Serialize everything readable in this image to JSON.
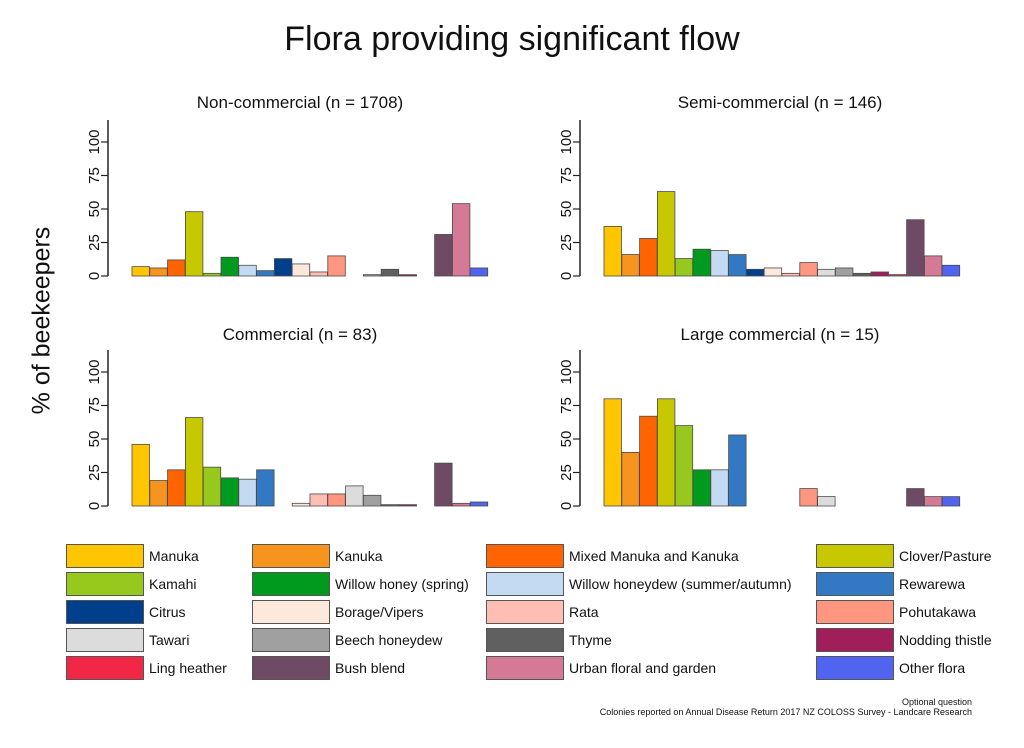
{
  "title": "Flora providing significant flow",
  "ylabel": "% of beekeepers",
  "footnotes": {
    "optional": "Optional question",
    "source": "Colonies reported on Annual Disease Return 2017 NZ COLOSS Survey - Landcare Research"
  },
  "legend": [
    {
      "label": "Manuka",
      "color": "#FFC600"
    },
    {
      "label": "Kanuka",
      "color": "#F7941D"
    },
    {
      "label": "Mixed Manuka and Kanuka",
      "color": "#FF6400"
    },
    {
      "label": "Clover/Pasture",
      "color": "#C8C800"
    },
    {
      "label": "Kamahi",
      "color": "#96C81E"
    },
    {
      "label": "Willow honey (spring)",
      "color": "#009B1E"
    },
    {
      "label": "Willow honeydew (summer/autumn)",
      "color": "#C3DAF2"
    },
    {
      "label": "Rewarewa",
      "color": "#3278C3"
    },
    {
      "label": "Citrus",
      "color": "#003F8C"
    },
    {
      "label": "Borage/Vipers",
      "color": "#FDE9DC"
    },
    {
      "label": "Rata",
      "color": "#FFBEB4"
    },
    {
      "label": "Pohutakawa",
      "color": "#FF9680"
    },
    {
      "label": "Tawari",
      "color": "#DCDCDC"
    },
    {
      "label": "Beech honeydew",
      "color": "#A0A0A0"
    },
    {
      "label": "Thyme",
      "color": "#606060"
    },
    {
      "label": "Nodding thistle",
      "color": "#A01E5A"
    },
    {
      "label": "Ling heather",
      "color": "#F02846"
    },
    {
      "label": "Bush blend",
      "color": "#6E4A64"
    },
    {
      "label": "Urban floral and garden",
      "color": "#D47A96"
    },
    {
      "label": "Other flora",
      "color": "#5064F0"
    }
  ],
  "chart_data": [
    {
      "type": "bar",
      "title": "Non-commercial (n = 1708)",
      "ylim": [
        0,
        100
      ],
      "yticks": [
        "0",
        "25",
        "50",
        "75",
        "100"
      ],
      "categories": [
        "Manuka",
        "Kanuka",
        "Mixed Manuka and Kanuka",
        "Clover/Pasture",
        "Kamahi",
        "Willow honey (spring)",
        "Willow honeydew (summer/autumn)",
        "Rewarewa",
        "Citrus",
        "Borage/Vipers",
        "Rata",
        "Pohutakawa",
        "Tawari",
        "Beech honeydew",
        "Thyme",
        "Nodding thistle",
        "Ling heather",
        "Bush blend",
        "Urban floral and garden",
        "Other flora"
      ],
      "values": [
        7,
        6,
        12,
        48,
        2,
        14,
        8,
        4,
        13,
        9,
        3,
        15,
        0,
        1,
        5,
        1,
        0,
        31,
        54,
        6
      ]
    },
    {
      "type": "bar",
      "title": "Semi-commercial (n = 146)",
      "ylim": [
        0,
        100
      ],
      "yticks": [
        "0",
        "25",
        "50",
        "75",
        "100"
      ],
      "categories": [
        "Manuka",
        "Kanuka",
        "Mixed Manuka and Kanuka",
        "Clover/Pasture",
        "Kamahi",
        "Willow honey (spring)",
        "Willow honeydew (summer/autumn)",
        "Rewarewa",
        "Citrus",
        "Borage/Vipers",
        "Rata",
        "Pohutakawa",
        "Tawari",
        "Beech honeydew",
        "Thyme",
        "Nodding thistle",
        "Ling heather",
        "Bush blend",
        "Urban floral and garden",
        "Other flora"
      ],
      "values": [
        37,
        16,
        28,
        63,
        13,
        20,
        19,
        16,
        5,
        6,
        2,
        10,
        5,
        6,
        2,
        3,
        1,
        42,
        15,
        8
      ]
    },
    {
      "type": "bar",
      "title": "Commercial (n = 83)",
      "ylim": [
        0,
        100
      ],
      "yticks": [
        "0",
        "25",
        "50",
        "75",
        "100"
      ],
      "categories": [
        "Manuka",
        "Kanuka",
        "Mixed Manuka and Kanuka",
        "Clover/Pasture",
        "Kamahi",
        "Willow honey (spring)",
        "Willow honeydew (summer/autumn)",
        "Rewarewa",
        "Citrus",
        "Borage/Vipers",
        "Rata",
        "Pohutakawa",
        "Tawari",
        "Beech honeydew",
        "Thyme",
        "Nodding thistle",
        "Ling heather",
        "Bush blend",
        "Urban floral and garden",
        "Other flora"
      ],
      "values": [
        46,
        19,
        27,
        66,
        29,
        21,
        20,
        27,
        0,
        2,
        9,
        9,
        15,
        8,
        1,
        1,
        0,
        32,
        2,
        3
      ]
    },
    {
      "type": "bar",
      "title": "Large commercial (n = 15)",
      "ylim": [
        0,
        100
      ],
      "yticks": [
        "0",
        "25",
        "50",
        "75",
        "100"
      ],
      "categories": [
        "Manuka",
        "Kanuka",
        "Mixed Manuka and Kanuka",
        "Clover/Pasture",
        "Kamahi",
        "Willow honey (spring)",
        "Willow honeydew (summer/autumn)",
        "Rewarewa",
        "Citrus",
        "Borage/Vipers",
        "Rata",
        "Pohutakawa",
        "Tawari",
        "Beech honeydew",
        "Thyme",
        "Nodding thistle",
        "Ling heather",
        "Bush blend",
        "Urban floral and garden",
        "Other flora"
      ],
      "values": [
        80,
        40,
        67,
        80,
        60,
        27,
        27,
        53,
        0,
        0,
        0,
        13,
        7,
        0,
        0,
        0,
        0,
        13,
        7,
        7
      ]
    }
  ]
}
